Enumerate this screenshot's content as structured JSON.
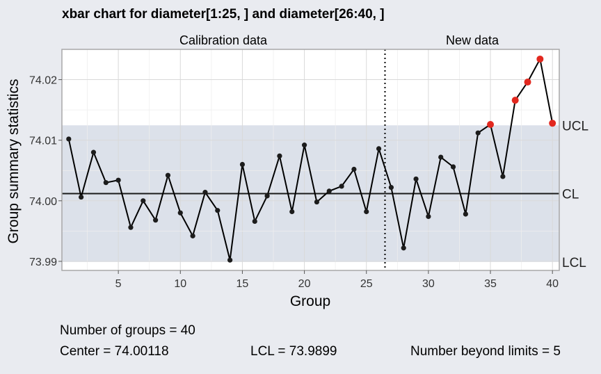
{
  "chart_data": {
    "type": "line",
    "title": "xbar chart for diameter[1:25, ] and diameter[26:40, ]",
    "xlabel": "Group",
    "ylabel": "Group summary statistics",
    "section_labels": [
      "Calibration data",
      "New data"
    ],
    "x_ticks": [
      5,
      10,
      15,
      20,
      25,
      30,
      35,
      40
    ],
    "y_ticks": [
      73.99,
      74.0,
      74.01,
      74.02
    ],
    "y_tick_labels": [
      "73.99",
      "74.00",
      "74.01",
      "74.02"
    ],
    "xlim": [
      0.45,
      40.55
    ],
    "ylim": [
      73.9885,
      74.025
    ],
    "grid": true,
    "calibration_end": 26.5,
    "limits": {
      "ucl": 74.01246,
      "cl": 74.00118,
      "lcl": 73.9899,
      "labels": [
        "UCL",
        "CL",
        "LCL"
      ]
    },
    "series": [
      {
        "x": [
          1,
          2,
          3,
          4,
          5,
          6,
          7,
          8,
          9,
          10,
          11,
          12,
          13,
          14,
          15,
          16,
          17,
          18,
          19,
          20,
          21,
          22,
          23,
          24,
          25,
          26,
          27,
          28,
          29,
          30,
          31,
          32,
          33,
          34,
          35,
          36,
          37,
          38,
          39,
          40
        ],
        "values": [
          74.0102,
          74.0006,
          74.008,
          74.003,
          74.0034,
          73.9956,
          74.0,
          73.9968,
          74.0042,
          73.998,
          73.9942,
          74.0014,
          73.9984,
          73.9902,
          74.006,
          73.9966,
          74.0008,
          74.0074,
          73.9982,
          74.0092,
          73.9998,
          74.0016,
          74.0024,
          74.0052,
          73.9982,
          74.0086,
          74.0022,
          73.9922,
          74.0036,
          73.9974,
          74.0072,
          74.0056,
          73.9978,
          74.0112,
          74.0126,
          74.004,
          74.0166,
          74.0196,
          74.0234,
          74.0128
        ],
        "out_of_control": [
          35,
          37,
          38,
          39,
          40
        ]
      }
    ],
    "colors": {
      "panel": "#ffffff",
      "limits_band": "#dce1ea",
      "line": "#000000",
      "point": "#1c1c1c",
      "out_of_control": "#e2281f"
    }
  },
  "stats": {
    "n_groups": "Number of groups = 40",
    "center": "Center = 74.00118",
    "lcl": "LCL = 73.9899",
    "beyond": "Number beyond limits = 5"
  }
}
